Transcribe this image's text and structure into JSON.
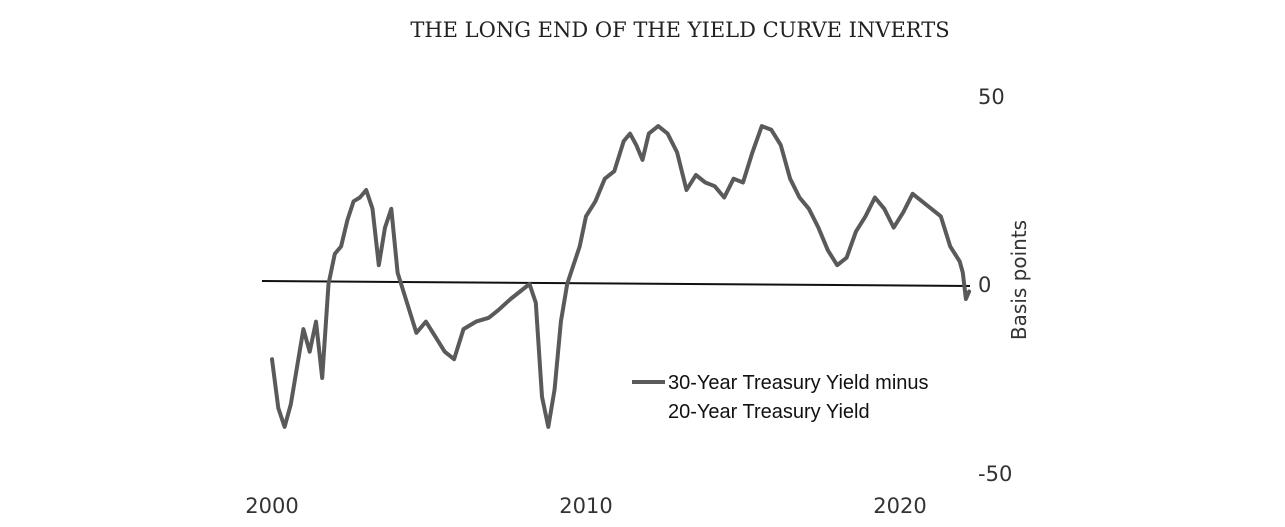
{
  "chart_data": {
    "type": "line",
    "title": "THE LONG END OF THE YIELD CURVE INVERTS",
    "ylabel": "Basis points",
    "xlabel": "",
    "ylim": [
      -50,
      50
    ],
    "xlim": [
      2000,
      2022.5
    ],
    "x_ticks": [
      "2000",
      "2010",
      "2020"
    ],
    "y_ticks": [
      "50",
      "0",
      "-50"
    ],
    "y_axis_position": "right",
    "grid": false,
    "zero_line": true,
    "legend_position": "bottom-right",
    "series": [
      {
        "name": "30-Year Treasury Yield minus 20-Year Treasury Yield",
        "legend_lines": [
          "30-Year Treasury Yield minus",
          "20-Year Treasury Yield"
        ],
        "color": "#5a5a5a",
        "x": [
          2000.0,
          2000.2,
          2000.4,
          2000.6,
          2000.8,
          2001.0,
          2001.2,
          2001.4,
          2001.6,
          2001.8,
          2002.0,
          2002.2,
          2002.4,
          2002.6,
          2002.8,
          2003.0,
          2003.2,
          2003.4,
          2003.6,
          2003.8,
          2004.0,
          2004.3,
          2004.6,
          2004.9,
          2005.2,
          2005.5,
          2005.8,
          2006.1,
          2006.5,
          2006.9,
          2007.2,
          2007.6,
          2007.9,
          2008.2,
          2008.4,
          2008.6,
          2008.8,
          2009.0,
          2009.2,
          2009.4,
          2009.6,
          2009.8,
          2010.0,
          2010.3,
          2010.6,
          2010.9,
          2011.2,
          2011.4,
          2011.6,
          2011.8,
          2012.0,
          2012.3,
          2012.6,
          2012.9,
          2013.2,
          2013.5,
          2013.8,
          2014.1,
          2014.4,
          2014.7,
          2015.0,
          2015.3,
          2015.6,
          2015.9,
          2016.2,
          2016.5,
          2016.8,
          2017.1,
          2017.4,
          2017.7,
          2018.0,
          2018.3,
          2018.6,
          2018.9,
          2019.2,
          2019.5,
          2019.8,
          2020.1,
          2020.4,
          2020.7,
          2021.0,
          2021.3,
          2021.6,
          2021.9,
          2022.0,
          2022.1,
          2022.2
        ],
        "values": [
          -20,
          -33,
          -38,
          -32,
          -22,
          -12,
          -18,
          -10,
          -25,
          0,
          8,
          10,
          17,
          22,
          23,
          25,
          20,
          5,
          15,
          20,
          3,
          -5,
          -13,
          -10,
          -14,
          -18,
          -20,
          -12,
          -10,
          -9,
          -7,
          -4,
          -2,
          0,
          -5,
          -30,
          -38,
          -28,
          -10,
          0,
          5,
          10,
          18,
          22,
          28,
          30,
          38,
          40,
          37,
          33,
          40,
          42,
          40,
          35,
          25,
          29,
          27,
          26,
          23,
          28,
          27,
          35,
          42,
          41,
          37,
          28,
          23,
          20,
          15,
          9,
          5,
          7,
          14,
          18,
          23,
          20,
          15,
          19,
          24,
          22,
          20,
          18,
          10,
          6,
          3,
          -4,
          -2
        ]
      }
    ]
  }
}
